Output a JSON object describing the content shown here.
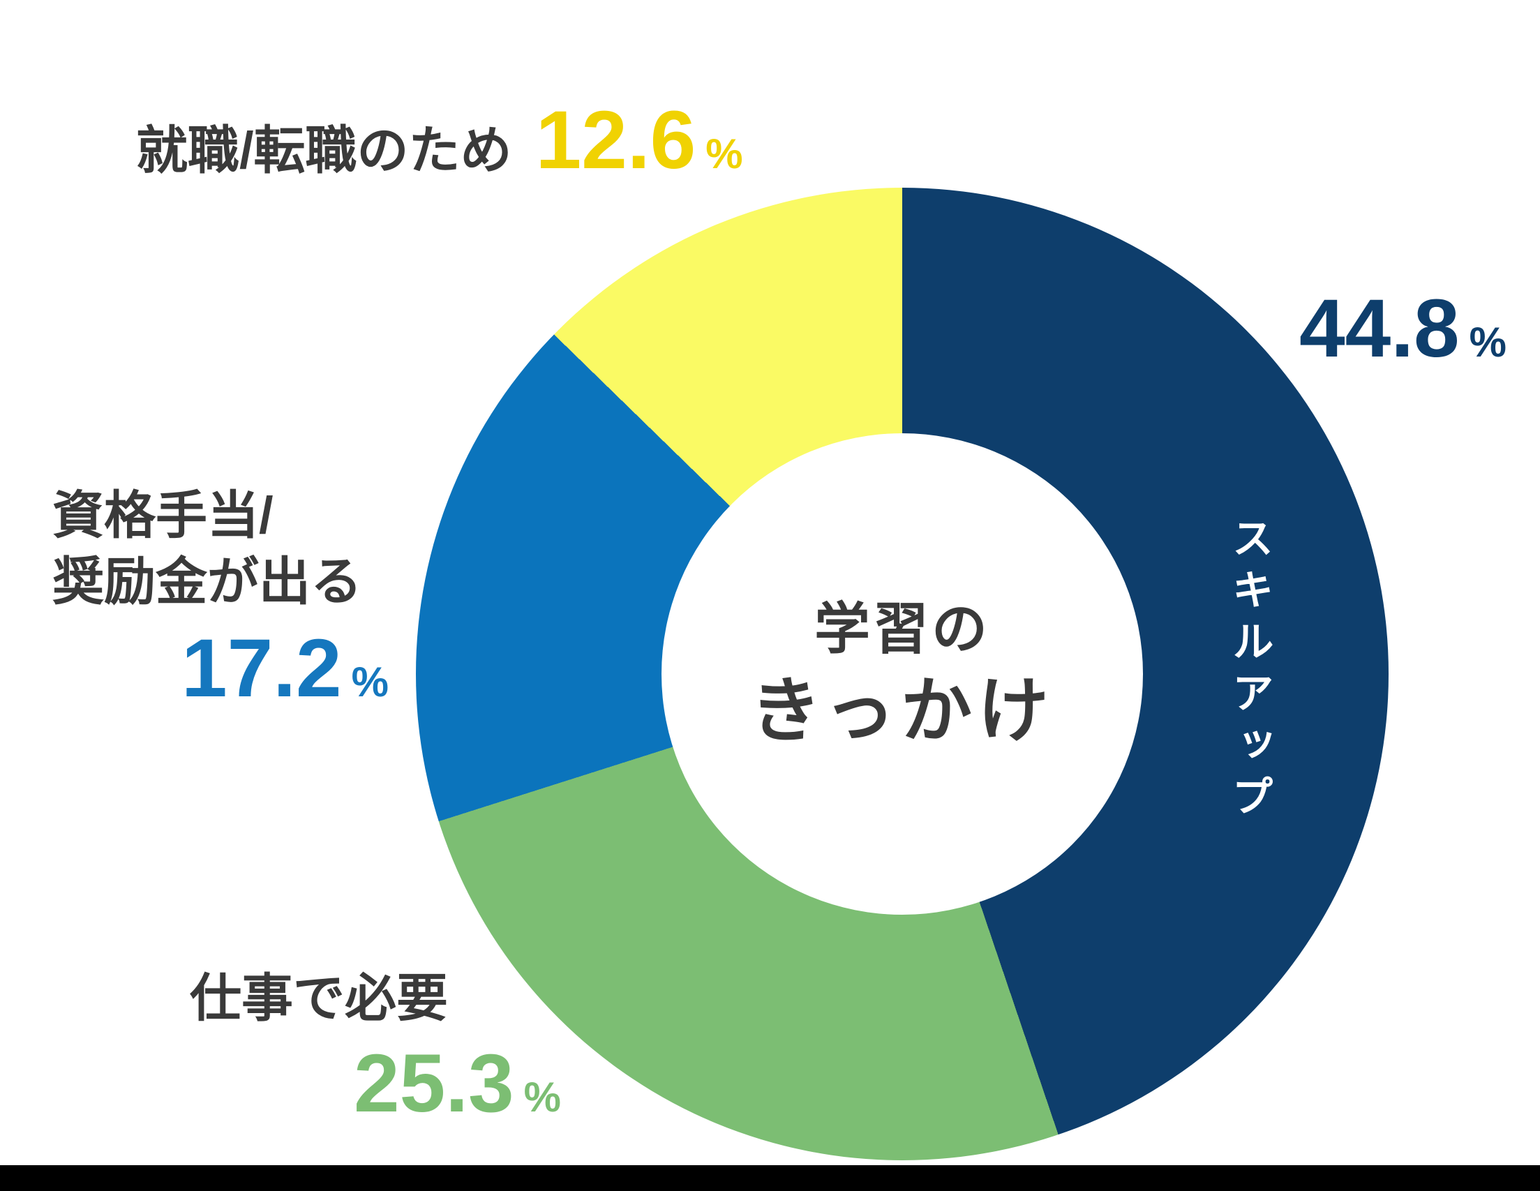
{
  "chart_data": {
    "type": "pie",
    "subtype": "donut",
    "title": "学習のきっかけ",
    "start_angle_deg": 0,
    "direction": "clockwise",
    "unit": "%",
    "segments": [
      {
        "label": "スキルアップ",
        "value": 44.8,
        "color": "#0E3E6C",
        "value_text": "44.8",
        "label_color": "#0E3E6C"
      },
      {
        "label": "仕事で必要",
        "value": 25.3,
        "color": "#7CBE73",
        "value_text": "25.3",
        "label_color": "#7CBE73"
      },
      {
        "label": "資格手当/奨励金が出る",
        "value": 17.2,
        "color": "#0B74BC",
        "value_text": "17.2",
        "label_color": "#1577BE"
      },
      {
        "label": "就職/転職のため",
        "value": 12.6,
        "color": "#FAFA64",
        "value_text": "12.6",
        "label_color": "#F0D202"
      }
    ],
    "legend_position": "around-chart",
    "grid": false
  },
  "center": {
    "line1": "学習の",
    "line2": "きっかけ"
  },
  "labels": {
    "skillup": {
      "text": "スキルアップ",
      "value": "44.8",
      "unit": "%"
    },
    "job_change": {
      "text": "就職/転職のため",
      "value": "12.6",
      "unit": "%"
    },
    "allowance": {
      "line1": "資格手当/",
      "line2": "奨励金が出る",
      "value": "17.2",
      "unit": "%"
    },
    "work_necessity": {
      "text": "仕事で必要",
      "value": "25.3",
      "unit": "%"
    }
  },
  "colors": {
    "navy": "#0E3E6C",
    "green": "#7CBE73",
    "blue": "#0B74BC",
    "yellow": "#FAFA64",
    "navy_text": "#0E3E6C",
    "green_text": "#7CBE73",
    "blue_text": "#1577BE",
    "yellow_text": "#F0D202",
    "label_dark": "#3A3A3A",
    "in_slice_label": "#FFFFFF",
    "background": "#FFFFFF",
    "bottom_bar": "#000000"
  }
}
